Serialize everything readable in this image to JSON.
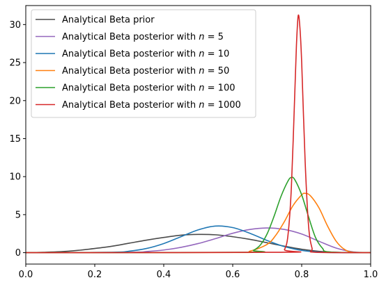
{
  "chart_data": {
    "type": "line",
    "title": "",
    "xlabel": "",
    "ylabel": "",
    "xlim": [
      0,
      1
    ],
    "ylim": [
      -1.5,
      32.5
    ],
    "xticks": [
      0.0,
      0.2,
      0.4,
      0.6,
      0.8,
      1.0
    ],
    "xtick_labels": [
      "0.0",
      "0.2",
      "0.4",
      "0.6",
      "0.8",
      "1.0"
    ],
    "yticks": [
      0,
      5,
      10,
      15,
      20,
      25,
      30
    ],
    "ytick_labels": [
      "0",
      "5",
      "10",
      "15",
      "20",
      "25",
      "30"
    ],
    "grid": false,
    "legend_position": "top-left",
    "series": [
      {
        "name_prefix": "Analytical Beta prior",
        "name_n": "",
        "color": "#4a4a4a",
        "x": [
          0.0,
          0.05,
          0.1,
          0.15,
          0.2,
          0.25,
          0.3,
          0.35,
          0.4,
          0.45,
          0.5,
          0.55,
          0.6,
          0.65,
          0.7,
          0.75,
          0.8,
          0.85,
          0.9,
          0.95,
          1.0
        ],
        "y": [
          0.0,
          0.05,
          0.13,
          0.3,
          0.55,
          0.85,
          1.25,
          1.65,
          2.0,
          2.3,
          2.4,
          2.35,
          2.1,
          1.75,
          1.3,
          0.85,
          0.45,
          0.18,
          0.05,
          0.01,
          0.0
        ]
      },
      {
        "name_prefix": "Analytical Beta posterior with ",
        "name_n": "5",
        "color": "#9467bd",
        "x": [
          0.0,
          0.3,
          0.35,
          0.4,
          0.45,
          0.5,
          0.55,
          0.6,
          0.65,
          0.7,
          0.75,
          0.8,
          0.85,
          0.9,
          0.95,
          1.0
        ],
        "y": [
          0.0,
          0.05,
          0.15,
          0.35,
          0.7,
          1.2,
          1.85,
          2.55,
          3.05,
          3.25,
          3.05,
          2.45,
          1.5,
          0.6,
          0.1,
          0.0
        ]
      },
      {
        "name_prefix": "Analytical Beta posterior with ",
        "name_n": "10",
        "color": "#1f77b4",
        "x": [
          0.0,
          0.25,
          0.3,
          0.35,
          0.4,
          0.45,
          0.5,
          0.55,
          0.6,
          0.65,
          0.7,
          0.75,
          0.8,
          0.85,
          0.9,
          1.0
        ],
        "y": [
          0.0,
          0.05,
          0.2,
          0.55,
          1.2,
          2.1,
          3.0,
          3.5,
          3.3,
          2.55,
          1.6,
          0.8,
          0.3,
          0.07,
          0.01,
          0.0
        ]
      },
      {
        "name_prefix": "Analytical Beta posterior with ",
        "name_n": "50",
        "color": "#ff7f0e",
        "x": [
          0.0,
          0.6,
          0.65,
          0.7,
          0.725,
          0.75,
          0.775,
          0.8,
          0.81,
          0.825,
          0.85,
          0.875,
          0.9,
          0.925,
          0.95,
          1.0
        ],
        "y": [
          0.0,
          0.02,
          0.2,
          1.1,
          2.3,
          4.1,
          6.2,
          7.6,
          7.8,
          7.5,
          5.9,
          3.5,
          1.5,
          0.4,
          0.05,
          0.0
        ]
      },
      {
        "name_prefix": "Analytical Beta posterior with ",
        "name_n": "100",
        "color": "#2ca02c",
        "x": [
          0.0,
          0.64,
          0.66,
          0.68,
          0.7,
          0.72,
          0.74,
          0.76,
          0.77,
          0.78,
          0.8,
          0.82,
          0.84,
          0.86,
          0.88,
          1.0
        ],
        "y": [
          0.0,
          0.05,
          0.3,
          1.0,
          2.5,
          4.8,
          7.4,
          9.4,
          9.9,
          9.6,
          7.6,
          4.7,
          2.0,
          0.6,
          0.1,
          0.0
        ]
      },
      {
        "name_prefix": "Analytical Beta posterior with ",
        "name_n": "1000",
        "color": "#d62728",
        "x": [
          0.0,
          0.74,
          0.75,
          0.76,
          0.77,
          0.78,
          0.785,
          0.79,
          0.795,
          0.8,
          0.81,
          0.82,
          0.83,
          0.84,
          1.0
        ],
        "y": [
          0.0,
          0.05,
          0.4,
          2.2,
          8.5,
          21.0,
          27.5,
          31.2,
          29.5,
          25.0,
          12.0,
          3.5,
          0.6,
          0.05,
          0.0
        ]
      }
    ]
  }
}
